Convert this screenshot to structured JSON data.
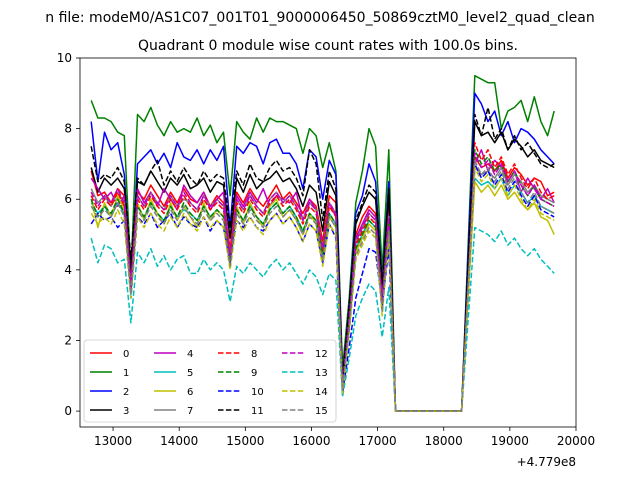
{
  "chart_data": {
    "type": "line",
    "title_top": "n file: modeM0/AS1C07_001T01_9000006450_50869cztM0_level2_quad_clean",
    "title": "Quadrant 0 module wise count rates with 100.0s bins.",
    "xlabel": "",
    "ylabel": "",
    "x_offset_label": "+4.779e8",
    "xlim": [
      12500,
      20000
    ],
    "ylim": [
      -0.45,
      10
    ],
    "xticks": [
      13000,
      14000,
      15000,
      16000,
      17000,
      18000,
      19000,
      20000
    ],
    "xtick_labels": [
      "13000",
      "14000",
      "15000",
      "16000",
      "17000",
      "18000",
      "19000",
      "20000"
    ],
    "yticks": [
      0,
      2,
      4,
      6,
      8,
      10
    ],
    "ytick_labels": [
      "0",
      "2",
      "4",
      "6",
      "8",
      "10"
    ],
    "grid": false,
    "legend_position": "lower-left",
    "legend_columns": 4,
    "x": [
      12670,
      12770,
      12870,
      12970,
      13070,
      13170,
      13270,
      13370,
      13470,
      13570,
      13670,
      13770,
      13870,
      13970,
      14070,
      14170,
      14270,
      14370,
      14470,
      14570,
      14670,
      14770,
      14870,
      14970,
      15070,
      15170,
      15270,
      15370,
      15470,
      15570,
      15670,
      15770,
      15870,
      15970,
      16070,
      16170,
      16270,
      16370,
      16470,
      16570,
      16670,
      16770,
      16870,
      16970,
      17070,
      17170,
      17270,
      18270,
      18470,
      18570,
      18670,
      18770,
      18870,
      18970,
      19070,
      19170,
      19270,
      19370,
      19470,
      19570,
      19670
    ],
    "series": [
      {
        "name": "0",
        "color": "#ff0000",
        "dash": "solid",
        "values": [
          6.8,
          6.1,
          6.2,
          5.9,
          6.3,
          6.1,
          3.8,
          6.2,
          6.0,
          6.4,
          6.1,
          5.8,
          6.2,
          5.9,
          6.3,
          6.0,
          5.9,
          6.2,
          5.8,
          6.1,
          5.9,
          4.6,
          6.2,
          5.9,
          6.3,
          6.0,
          5.8,
          6.1,
          6.4,
          6.0,
          6.2,
          5.9,
          5.6,
          6.0,
          5.8,
          4.8,
          6.1,
          5.9,
          0.8,
          2.8,
          5.0,
          5.5,
          5.8,
          5.6,
          3.4,
          5.8,
          0.0,
          0.0,
          7.2,
          6.9,
          7.0,
          6.8,
          7.1,
          6.6,
          6.9,
          6.7,
          6.4,
          6.6,
          6.5,
          6.1,
          6.2
        ]
      },
      {
        "name": "1",
        "color": "#008000",
        "dash": "solid",
        "values": [
          8.8,
          8.3,
          8.3,
          8.2,
          7.9,
          7.8,
          3.9,
          8.4,
          8.2,
          8.6,
          8.1,
          7.8,
          8.2,
          7.9,
          8.0,
          7.9,
          8.3,
          7.8,
          8.1,
          7.6,
          7.9,
          6.1,
          8.2,
          7.9,
          7.7,
          8.3,
          7.9,
          8.3,
          8.2,
          8.2,
          8.1,
          8.0,
          7.3,
          8.0,
          7.8,
          6.9,
          7.6,
          6.8,
          1.2,
          3.2,
          5.9,
          6.8,
          8.0,
          7.5,
          4.0,
          7.4,
          0.0,
          0.0,
          9.5,
          9.4,
          9.3,
          9.3,
          8.0,
          8.5,
          8.6,
          8.8,
          8.2,
          8.9,
          8.2,
          7.8,
          8.5
        ]
      },
      {
        "name": "2",
        "color": "#0000ff",
        "dash": "solid",
        "values": [
          8.2,
          6.5,
          7.9,
          7.4,
          7.6,
          6.7,
          3.6,
          7.0,
          7.2,
          7.4,
          7.0,
          7.3,
          6.9,
          7.6,
          7.2,
          7.1,
          7.4,
          7.0,
          7.4,
          7.1,
          7.5,
          5.2,
          7.5,
          7.3,
          7.6,
          7.5,
          7.0,
          7.6,
          7.7,
          7.3,
          7.3,
          7.0,
          6.3,
          7.4,
          7.2,
          6.0,
          7.1,
          6.7,
          0.9,
          3.0,
          5.6,
          6.1,
          7.0,
          6.5,
          3.6,
          6.5,
          0.0,
          0.0,
          9.0,
          8.7,
          8.2,
          8.5,
          7.8,
          8.2,
          7.6,
          8.0,
          7.9,
          7.7,
          7.4,
          7.2,
          7.0
        ]
      },
      {
        "name": "3",
        "color": "#000000",
        "dash": "solid",
        "values": [
          6.9,
          6.2,
          6.6,
          6.4,
          6.6,
          6.3,
          3.9,
          6.5,
          6.4,
          6.8,
          6.5,
          6.2,
          6.6,
          6.4,
          6.7,
          6.3,
          6.4,
          6.6,
          6.2,
          6.5,
          6.4,
          4.9,
          6.6,
          6.2,
          6.7,
          6.3,
          6.5,
          6.6,
          6.8,
          6.5,
          6.6,
          6.3,
          5.8,
          6.4,
          6.2,
          5.1,
          6.5,
          6.1,
          0.9,
          2.9,
          5.3,
          5.8,
          6.2,
          6.0,
          3.5,
          6.2,
          0.0,
          0.0,
          8.2,
          7.8,
          7.9,
          7.6,
          7.9,
          7.4,
          7.7,
          7.5,
          7.2,
          7.4,
          7.1,
          7.0,
          6.9
        ]
      },
      {
        "name": "4",
        "color": "#bf00bf",
        "dash": "solid",
        "values": [
          6.6,
          6.3,
          6.0,
          6.2,
          5.8,
          6.1,
          3.6,
          6.3,
          5.9,
          6.2,
          5.8,
          6.3,
          6.0,
          5.7,
          6.4,
          6.1,
          5.9,
          6.2,
          5.7,
          6.0,
          6.2,
          4.3,
          6.1,
          5.8,
          6.2,
          5.9,
          6.3,
          5.8,
          6.1,
          6.0,
          5.9,
          6.2,
          5.4,
          6.0,
          5.7,
          4.6,
          5.9,
          5.5,
          0.8,
          2.7,
          4.9,
          5.3,
          5.7,
          5.5,
          3.2,
          5.6,
          0.0,
          0.0,
          7.0,
          7.4,
          6.8,
          7.1,
          6.9,
          6.5,
          6.8,
          6.2,
          6.6,
          6.3,
          6.0,
          6.3,
          5.9
        ]
      },
      {
        "name": "5",
        "color": "#00bfbf",
        "dash": "solid",
        "values": [
          5.9,
          5.6,
          5.8,
          5.5,
          5.9,
          5.6,
          3.3,
          5.8,
          5.5,
          5.9,
          5.6,
          5.4,
          5.8,
          5.5,
          5.7,
          5.6,
          5.4,
          5.8,
          5.5,
          5.7,
          5.5,
          4.2,
          5.7,
          5.4,
          5.8,
          5.5,
          5.3,
          5.7,
          5.9,
          5.6,
          5.8,
          5.5,
          5.1,
          5.6,
          5.4,
          4.4,
          5.6,
          5.3,
          0.7,
          2.5,
          4.6,
          5.0,
          5.4,
          5.2,
          3.0,
          5.3,
          0.0,
          0.0,
          6.6,
          6.4,
          6.5,
          6.3,
          6.6,
          6.1,
          6.4,
          6.2,
          5.9,
          6.1,
          5.8,
          5.7,
          5.6
        ]
      },
      {
        "name": "6",
        "color": "#bfbf00",
        "dash": "solid",
        "values": [
          6.0,
          5.2,
          5.9,
          5.5,
          6.1,
          5.7,
          3.4,
          5.9,
          5.4,
          6.0,
          5.6,
          5.3,
          5.9,
          5.4,
          5.8,
          5.5,
          5.2,
          5.9,
          5.4,
          5.7,
          5.5,
          4.1,
          5.8,
          5.3,
          5.9,
          5.5,
          5.2,
          5.8,
          6.0,
          5.5,
          5.7,
          5.4,
          5.0,
          5.6,
          5.3,
          4.3,
          5.5,
          5.2,
          0.6,
          2.4,
          4.5,
          4.9,
          5.3,
          5.1,
          2.9,
          5.2,
          0.0,
          0.0,
          6.5,
          6.2,
          6.4,
          6.1,
          6.4,
          6.0,
          6.2,
          5.9,
          5.7,
          5.9,
          5.5,
          5.4,
          5.0
        ]
      },
      {
        "name": "7",
        "color": "#808080",
        "dash": "solid",
        "values": [
          6.3,
          5.9,
          6.1,
          5.8,
          6.2,
          5.9,
          3.5,
          6.1,
          5.8,
          6.2,
          5.9,
          5.7,
          6.1,
          5.8,
          6.0,
          5.9,
          5.7,
          6.1,
          5.8,
          6.0,
          5.8,
          4.4,
          6.0,
          5.7,
          6.1,
          5.8,
          5.6,
          6.0,
          6.2,
          5.9,
          6.1,
          5.8,
          5.4,
          5.9,
          5.7,
          4.6,
          5.9,
          5.6,
          0.7,
          2.6,
          4.8,
          5.2,
          5.6,
          5.4,
          3.1,
          5.5,
          0.0,
          0.0,
          6.9,
          6.7,
          6.8,
          6.6,
          6.9,
          6.4,
          6.7,
          6.5,
          6.2,
          6.4,
          6.1,
          6.0,
          5.9
        ]
      },
      {
        "name": "8",
        "color": "#ff0000",
        "dash": "dashed",
        "values": [
          6.1,
          5.7,
          6.0,
          5.8,
          6.2,
          5.8,
          3.4,
          6.0,
          5.7,
          6.1,
          5.8,
          5.6,
          6.0,
          5.7,
          6.1,
          5.8,
          5.6,
          6.0,
          5.7,
          5.9,
          5.7,
          4.3,
          5.9,
          5.6,
          6.0,
          5.7,
          5.5,
          5.9,
          6.1,
          5.8,
          6.0,
          5.7,
          5.3,
          5.8,
          5.6,
          4.5,
          5.8,
          5.5,
          0.6,
          2.5,
          4.7,
          5.1,
          5.5,
          5.3,
          3.0,
          5.4,
          0.0,
          0.0,
          7.6,
          7.1,
          7.4,
          6.9,
          7.2,
          6.7,
          7.0,
          6.6,
          6.3,
          6.6,
          6.2,
          6.0,
          6.1
        ]
      },
      {
        "name": "9",
        "color": "#008000",
        "dash": "dashed",
        "values": [
          6.0,
          5.5,
          5.8,
          5.6,
          6.0,
          5.6,
          3.4,
          5.8,
          5.5,
          5.9,
          5.6,
          5.4,
          5.8,
          5.5,
          5.9,
          5.6,
          5.4,
          5.8,
          5.5,
          5.7,
          5.5,
          4.2,
          5.7,
          5.4,
          5.8,
          5.5,
          5.3,
          5.7,
          5.9,
          5.6,
          5.8,
          5.5,
          5.1,
          5.6,
          5.4,
          4.4,
          5.6,
          5.3,
          0.6,
          2.4,
          4.6,
          5.0,
          5.4,
          5.2,
          2.9,
          5.3,
          0.0,
          0.0,
          7.4,
          7.0,
          7.2,
          6.8,
          7.0,
          6.5,
          6.8,
          6.4,
          6.1,
          6.4,
          6.0,
          5.9,
          5.8
        ]
      },
      {
        "name": "10",
        "color": "#0000ff",
        "dash": "dashed",
        "values": [
          5.3,
          5.6,
          5.4,
          5.5,
          5.2,
          5.4,
          3.2,
          5.5,
          5.3,
          5.6,
          5.2,
          5.4,
          5.6,
          5.2,
          5.5,
          5.3,
          5.2,
          5.5,
          5.1,
          5.4,
          5.2,
          4.2,
          5.4,
          5.2,
          5.5,
          5.2,
          5.1,
          5.4,
          5.6,
          5.3,
          5.5,
          5.2,
          4.8,
          5.3,
          5.1,
          4.2,
          5.3,
          4.9,
          0.5,
          1.8,
          3.2,
          3.9,
          4.6,
          4.5,
          3.0,
          4.6,
          0.0,
          0.0,
          7.0,
          6.6,
          6.8,
          6.4,
          6.7,
          6.2,
          6.5,
          6.1,
          5.8,
          6.1,
          5.7,
          5.6,
          5.5
        ]
      },
      {
        "name": "11",
        "color": "#000000",
        "dash": "dashed",
        "values": [
          7.5,
          6.5,
          6.7,
          6.6,
          6.9,
          6.5,
          4.3,
          6.6,
          6.4,
          6.8,
          7.1,
          6.4,
          6.8,
          6.5,
          6.9,
          6.6,
          6.4,
          6.8,
          6.5,
          6.7,
          6.6,
          5.2,
          6.8,
          6.4,
          7.0,
          6.6,
          6.5,
          6.9,
          7.1,
          6.8,
          6.9,
          6.6,
          6.1,
          7.4,
          7.0,
          5.4,
          6.8,
          6.3,
          0.9,
          3.0,
          5.4,
          5.9,
          6.4,
          6.2,
          3.6,
          6.3,
          0.0,
          0.0,
          8.4,
          7.8,
          8.6,
          7.7,
          8.0,
          7.4,
          7.8,
          7.4,
          7.6,
          7.3,
          7.0,
          6.9,
          7.0
        ]
      },
      {
        "name": "12",
        "color": "#bf00bf",
        "dash": "dashed",
        "values": [
          6.2,
          5.8,
          6.1,
          5.9,
          6.3,
          5.9,
          3.5,
          6.1,
          5.8,
          6.2,
          5.9,
          5.7,
          6.1,
          5.8,
          6.2,
          5.9,
          5.7,
          6.1,
          5.8,
          6.0,
          5.8,
          4.4,
          6.0,
          5.7,
          6.1,
          5.8,
          5.6,
          6.0,
          6.2,
          5.9,
          6.1,
          5.8,
          5.4,
          5.9,
          5.7,
          4.6,
          5.9,
          5.6,
          0.7,
          2.6,
          4.8,
          5.2,
          5.6,
          5.4,
          3.1,
          5.5,
          0.0,
          0.0,
          7.3,
          6.9,
          7.1,
          6.7,
          7.0,
          6.5,
          6.8,
          6.4,
          6.1,
          6.4,
          6.0,
          5.9,
          5.8
        ]
      },
      {
        "name": "13",
        "color": "#00bfbf",
        "dash": "dashed",
        "values": [
          4.9,
          4.2,
          4.7,
          4.6,
          4.2,
          4.3,
          2.5,
          4.5,
          4.2,
          4.6,
          4.1,
          4.4,
          4.0,
          4.3,
          4.4,
          3.9,
          3.9,
          4.3,
          4.0,
          4.2,
          4.0,
          3.1,
          4.1,
          3.9,
          4.2,
          4.0,
          3.8,
          4.1,
          4.3,
          4.0,
          4.2,
          3.9,
          3.6,
          4.0,
          3.8,
          3.3,
          3.9,
          3.7,
          0.4,
          1.5,
          2.7,
          3.2,
          3.6,
          3.4,
          2.1,
          3.5,
          0.0,
          0.0,
          5.2,
          5.1,
          5.0,
          4.8,
          5.1,
          4.7,
          4.9,
          4.6,
          4.4,
          4.6,
          4.3,
          4.1,
          3.9
        ]
      },
      {
        "name": "14",
        "color": "#bfbf00",
        "dash": "dashed",
        "values": [
          5.6,
          5.3,
          5.5,
          5.3,
          5.7,
          5.3,
          3.2,
          5.5,
          5.2,
          5.6,
          5.3,
          5.1,
          5.5,
          5.2,
          5.6,
          5.3,
          5.1,
          5.5,
          5.2,
          5.4,
          5.2,
          4.0,
          5.4,
          5.1,
          5.5,
          5.2,
          5.0,
          5.4,
          5.6,
          5.3,
          5.5,
          5.2,
          4.8,
          5.3,
          5.1,
          4.1,
          5.3,
          5.0,
          0.5,
          2.2,
          4.3,
          4.7,
          5.1,
          4.9,
          2.7,
          5.0,
          0.0,
          0.0,
          6.9,
          6.5,
          6.7,
          6.3,
          6.6,
          6.1,
          6.4,
          6.0,
          5.7,
          6.0,
          5.6,
          5.5,
          5.4
        ]
      },
      {
        "name": "15",
        "color": "#808080",
        "dash": "dashed",
        "values": [
          5.8,
          5.5,
          5.7,
          5.5,
          5.9,
          5.5,
          3.3,
          5.7,
          5.4,
          5.8,
          5.5,
          5.3,
          5.7,
          5.4,
          5.8,
          5.5,
          5.3,
          5.7,
          5.4,
          5.6,
          5.4,
          4.1,
          5.6,
          5.3,
          5.7,
          5.4,
          5.2,
          5.6,
          5.8,
          5.5,
          5.7,
          5.4,
          5.0,
          5.5,
          5.3,
          4.3,
          5.5,
          5.2,
          0.6,
          2.3,
          4.4,
          4.8,
          5.2,
          5.0,
          2.8,
          5.1,
          0.0,
          0.0,
          7.1,
          6.7,
          6.9,
          6.5,
          6.8,
          6.3,
          6.6,
          6.2,
          5.9,
          6.2,
          5.8,
          5.7,
          5.6
        ]
      }
    ]
  }
}
